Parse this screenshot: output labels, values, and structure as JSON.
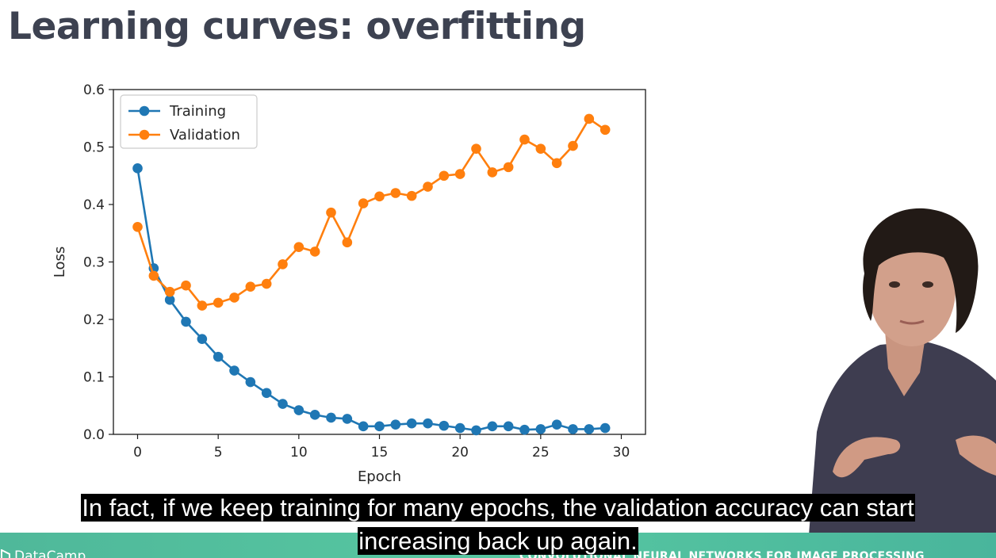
{
  "slide": {
    "title": "Learning curves: overfitting"
  },
  "chart_data": {
    "type": "line",
    "title": "",
    "xlabel": "Epoch",
    "ylabel": "Loss",
    "xlim": [
      -1.5,
      31.5
    ],
    "ylim": [
      0,
      0.6
    ],
    "xticks": [
      "0",
      "5",
      "10",
      "15",
      "20",
      "25",
      "30"
    ],
    "yticks": [
      "0.0",
      "0.1",
      "0.2",
      "0.3",
      "0.4",
      "0.5",
      "0.6"
    ],
    "legend_position": "top-left",
    "grid": false,
    "x": [
      0,
      1,
      2,
      3,
      4,
      5,
      6,
      7,
      8,
      9,
      10,
      11,
      12,
      13,
      14,
      15,
      16,
      17,
      18,
      19,
      20,
      21,
      22,
      23,
      24,
      25,
      26,
      27,
      28,
      29
    ],
    "series": [
      {
        "name": "Training",
        "color": "#1f77b4",
        "values": [
          0.463,
          0.289,
          0.234,
          0.196,
          0.166,
          0.135,
          0.111,
          0.091,
          0.072,
          0.053,
          0.042,
          0.034,
          0.029,
          0.027,
          0.014,
          0.014,
          0.017,
          0.019,
          0.019,
          0.015,
          0.011,
          0.007,
          0.014,
          0.014,
          0.008,
          0.009,
          0.017,
          0.009,
          0.009,
          0.011
        ]
      },
      {
        "name": "Validation",
        "color": "#ff7f0e",
        "values": [
          0.361,
          0.276,
          0.248,
          0.259,
          0.224,
          0.229,
          0.238,
          0.257,
          0.262,
          0.296,
          0.326,
          0.318,
          0.386,
          0.334,
          0.402,
          0.414,
          0.42,
          0.415,
          0.431,
          0.45,
          0.453,
          0.497,
          0.456,
          0.465,
          0.513,
          0.497,
          0.472,
          0.502,
          0.549,
          0.53
        ]
      }
    ]
  },
  "caption": {
    "line1": "In fact, if we keep training for many epochs, the validation accuracy can start",
    "line2": "increasing back up again."
  },
  "footer": {
    "brand": "DataCamp",
    "course": "CONVOLUTIONAL NEURAL NETWORKS FOR IMAGE PROCESSING",
    "accent": "#53c1a0"
  },
  "icons": [
    "datacamp-logo-icon"
  ]
}
